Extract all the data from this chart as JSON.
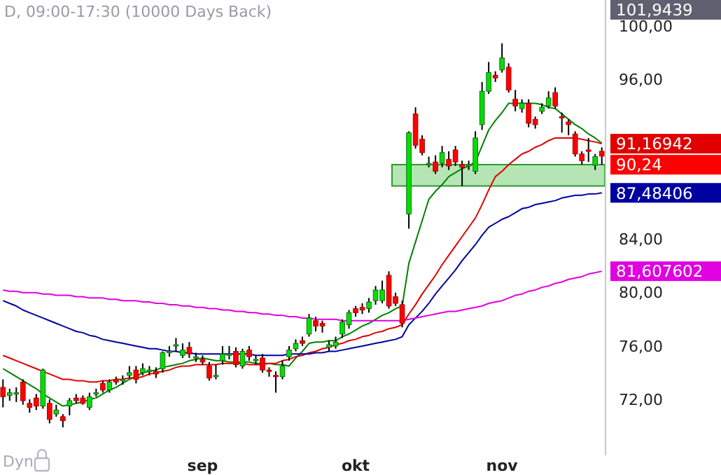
{
  "chart_data": {
    "type": "candlestick",
    "title": "D, 09:00-17:30 (10000 Days Back)",
    "categories": [
      null,
      null,
      null,
      null,
      null,
      null,
      null,
      null,
      null,
      null,
      null,
      null,
      null,
      null,
      null,
      null,
      null,
      null,
      null,
      null,
      null,
      null,
      null,
      null,
      null,
      null,
      null,
      null,
      null,
      null,
      "sep",
      null,
      null,
      null,
      null,
      null,
      null,
      null,
      null,
      null,
      null,
      null,
      null,
      null,
      null,
      null,
      null,
      null,
      null,
      null,
      null,
      null,
      null,
      "okt",
      null,
      null,
      null,
      null,
      null,
      null,
      null,
      null,
      null,
      null,
      null,
      null,
      null,
      null,
      null,
      null,
      null,
      null,
      null,
      null,
      null,
      "nov",
      null,
      null,
      null,
      null,
      null,
      null,
      null,
      null,
      null,
      null,
      null,
      null,
      null,
      null,
      null
    ],
    "ohlc": [
      [
        72.9,
        73.5,
        71.4,
        72.2
      ],
      [
        72.3,
        72.8,
        71.9,
        72.5
      ],
      [
        72.4,
        72.9,
        71.8,
        72.5
      ],
      [
        73.3,
        73.5,
        71.6,
        71.9
      ],
      [
        71.7,
        72.0,
        71.0,
        71.4
      ],
      [
        72.1,
        72.4,
        71.2,
        71.5
      ],
      [
        71.5,
        74.3,
        71.3,
        74.2
      ],
      [
        71.7,
        72.0,
        70.2,
        70.5
      ],
      [
        70.9,
        71.6,
        70.7,
        71.2
      ],
      [
        70.7,
        70.9,
        69.9,
        70.4
      ],
      [
        71.5,
        72.1,
        70.8,
        71.9
      ],
      [
        72.1,
        72.4,
        71.7,
        71.9
      ],
      [
        72.1,
        72.3,
        71.6,
        71.7
      ],
      [
        71.4,
        72.5,
        71.2,
        72.2
      ],
      [
        72.4,
        72.8,
        72.2,
        72.5
      ],
      [
        73.2,
        73.4,
        72.5,
        72.7
      ],
      [
        72.7,
        73.5,
        72.5,
        73.3
      ],
      [
        73.5,
        73.7,
        73.1,
        73.3
      ],
      [
        73.4,
        73.8,
        73.1,
        73.5
      ],
      [
        73.8,
        74.5,
        73.6,
        74.0
      ],
      [
        74.2,
        74.5,
        73.2,
        73.5
      ],
      [
        74.0,
        74.7,
        73.8,
        74.3
      ],
      [
        74.1,
        74.5,
        73.8,
        74.2
      ],
      [
        74.1,
        74.4,
        73.6,
        73.9
      ],
      [
        74.3,
        75.6,
        74.0,
        75.5
      ],
      [
        75.5,
        76.0,
        75.2,
        75.6
      ],
      [
        76.0,
        76.6,
        75.6,
        76.1
      ],
      [
        75.3,
        76.2,
        75.1,
        75.7
      ],
      [
        75.9,
        76.3,
        75.1,
        75.4
      ],
      [
        75.1,
        75.5,
        74.8,
        75.2
      ],
      [
        75.0,
        75.3,
        74.6,
        74.8
      ],
      [
        74.5,
        74.8,
        73.4,
        73.6
      ],
      [
        73.7,
        74.6,
        73.5,
        73.8
      ],
      [
        74.9,
        76.0,
        74.6,
        75.4
      ],
      [
        75.3,
        76.0,
        75.0,
        75.4
      ],
      [
        75.6,
        75.9,
        74.4,
        74.6
      ],
      [
        74.5,
        75.8,
        74.3,
        75.6
      ],
      [
        75.7,
        76.0,
        74.9,
        75.2
      ],
      [
        74.9,
        75.3,
        74.6,
        75.0
      ],
      [
        75.1,
        75.4,
        74.0,
        74.2
      ],
      [
        74.2,
        74.4,
        73.7,
        74.1
      ],
      [
        73.8,
        74.1,
        72.5,
        73.7
      ],
      [
        73.7,
        74.9,
        73.5,
        74.5
      ],
      [
        75.2,
        76.0,
        74.9,
        75.7
      ],
      [
        75.8,
        76.5,
        75.6,
        76.2
      ],
      [
        76.4,
        76.7,
        76.0,
        76.2
      ],
      [
        76.9,
        78.4,
        76.7,
        78.1
      ],
      [
        77.9,
        78.2,
        77.1,
        77.5
      ],
      [
        77.7,
        77.9,
        77.0,
        77.5
      ],
      [
        75.9,
        76.4,
        75.6,
        76.1
      ],
      [
        76.0,
        76.7,
        75.8,
        76.3
      ],
      [
        76.9,
        78.0,
        76.6,
        77.8
      ],
      [
        77.6,
        78.7,
        77.3,
        78.5
      ],
      [
        78.8,
        79.0,
        78.2,
        78.5
      ],
      [
        78.9,
        79.2,
        78.4,
        78.7
      ],
      [
        78.8,
        79.6,
        78.5,
        79.3
      ],
      [
        79.4,
        80.5,
        79.1,
        80.2
      ],
      [
        79.4,
        80.9,
        79.2,
        80.2
      ],
      [
        81.3,
        81.6,
        78.8,
        79.0
      ],
      [
        79.7,
        80.0,
        79.0,
        79.2
      ],
      [
        79.1,
        79.4,
        77.4,
        77.7
      ],
      [
        85.9,
        92.1,
        84.8,
        92.0
      ],
      [
        93.4,
        93.9,
        90.8,
        91.05
      ],
      [
        91.5,
        91.8,
        90.3,
        90.5
      ],
      [
        89.6,
        90.2,
        89.4,
        89.7
      ],
      [
        89.8,
        90.3,
        88.9,
        89.1
      ],
      [
        89.7,
        91.0,
        89.4,
        90.5
      ],
      [
        90.0,
        90.6,
        89.2,
        89.5
      ],
      [
        90.7,
        91.0,
        89.5,
        89.8
      ],
      [
        89.6,
        89.9,
        88.0,
        89.4
      ],
      [
        89.5,
        89.9,
        89.2,
        89.6
      ],
      [
        89.1,
        92.1,
        88.9,
        91.6
      ],
      [
        92.6,
        95.8,
        92.2,
        95.1
      ],
      [
        95.1,
        97.3,
        94.9,
        96.5
      ],
      [
        96.3,
        96.6,
        95.8,
        96.1
      ],
      [
        96.7,
        98.7,
        96.5,
        97.6
      ],
      [
        96.9,
        97.2,
        95.0,
        95.2
      ],
      [
        94.5,
        95.2,
        93.6,
        94.0
      ],
      [
        93.8,
        94.5,
        93.5,
        94.2
      ],
      [
        94.2,
        94.5,
        92.4,
        92.7
      ],
      [
        93.0,
        93.2,
        92.3,
        92.6
      ],
      [
        93.6,
        94.2,
        93.4,
        93.9
      ],
      [
        94.0,
        95.1,
        93.8,
        94.6
      ],
      [
        95.0,
        95.4,
        93.8,
        94.0
      ],
      [
        93.2,
        93.5,
        92.0,
        93.1
      ],
      [
        92.8,
        93.0,
        91.8,
        92.6
      ],
      [
        91.9,
        92.1,
        90.2,
        90.4
      ],
      [
        90.4,
        90.6,
        89.6,
        89.9
      ],
      [
        90.7,
        91.6,
        89.8,
        90.6
      ],
      [
        89.55,
        90.4,
        89.2,
        90.2
      ],
      [
        90.6,
        90.9,
        89.6,
        90.24
      ]
    ],
    "series": [
      {
        "type": "line",
        "color": "#008000",
        "values": [
          74.3,
          74.0,
          73.7,
          73.4,
          73.1,
          72.8,
          72.4,
          72.1,
          71.8,
          71.5,
          71.6,
          71.7,
          71.8,
          72.0,
          72.1,
          72.4,
          72.7,
          72.9,
          73.2,
          73.5,
          73.7,
          74.0,
          74.1,
          74.2,
          74.4,
          74.5,
          74.6,
          74.7,
          74.9,
          75.0,
          75.1,
          75.0,
          74.9,
          74.9,
          74.8,
          74.8,
          74.8,
          74.8,
          74.7,
          74.7,
          74.7,
          74.6,
          74.6,
          74.5,
          75.1,
          75.6,
          76.2,
          76.3,
          76.3,
          76.4,
          76.4,
          76.7,
          76.9,
          77.2,
          77.5,
          77.7,
          78.0,
          78.3,
          78.5,
          78.8,
          79.0,
          82.2,
          83.8,
          85.4,
          87.0,
          87.6,
          88.1,
          88.7,
          89.0,
          89.3,
          89.5,
          89.8,
          91.0,
          92.2,
          92.9,
          93.5,
          94.2,
          94.2,
          94.2,
          94.2,
          94.2,
          94.1,
          93.9,
          93.8,
          93.4,
          93.0,
          92.6,
          92.3,
          91.9,
          91.6,
          91.2
        ]
      },
      {
        "type": "line",
        "color": "#e00000",
        "values": [
          75.3,
          75.1,
          74.9,
          74.7,
          74.5,
          74.3,
          74.1,
          73.9,
          73.7,
          73.5,
          73.5,
          73.4,
          73.4,
          73.3,
          73.3,
          73.4,
          73.4,
          73.5,
          73.5,
          73.6,
          73.6,
          73.7,
          73.9,
          74.0,
          74.1,
          74.2,
          74.4,
          74.5,
          74.5,
          74.6,
          74.6,
          74.6,
          74.6,
          74.7,
          74.7,
          74.7,
          74.7,
          74.6,
          74.6,
          74.6,
          74.7,
          74.7,
          74.9,
          75.0,
          75.2,
          75.3,
          75.5,
          75.6,
          75.8,
          75.9,
          76.1,
          76.2,
          76.4,
          76.5,
          76.7,
          76.8,
          77.0,
          77.1,
          77.3,
          77.4,
          77.6,
          78.4,
          79.1,
          79.9,
          80.6,
          81.3,
          82.1,
          82.8,
          83.5,
          84.2,
          84.9,
          85.6,
          86.6,
          87.7,
          88.7,
          89.1,
          89.6,
          90.0,
          90.4,
          90.6,
          90.9,
          91.1,
          91.4,
          91.6,
          91.6,
          91.6,
          91.6,
          91.5,
          91.4,
          91.3,
          91.16942
        ],
        "value_labels": [
          null,
          null,
          null,
          null,
          null,
          null,
          null,
          null,
          null,
          null,
          null,
          null,
          null,
          null,
          null,
          null,
          null,
          null,
          null,
          null,
          null,
          null,
          null,
          null,
          null,
          null,
          null,
          null,
          null,
          null,
          null,
          null,
          null,
          null,
          null,
          null,
          null,
          null,
          null,
          null,
          null,
          null,
          null,
          null,
          null,
          null,
          null,
          null,
          null,
          null,
          null,
          null,
          null,
          null,
          null,
          null,
          null,
          null,
          null,
          null,
          null,
          null,
          null,
          null,
          null,
          null,
          null,
          null,
          null,
          null,
          null,
          null,
          null,
          null,
          null,
          null,
          null,
          null,
          null,
          null,
          null,
          null,
          null,
          null,
          null,
          null,
          null,
          null,
          null,
          null,
          "91,16942"
        ]
      },
      {
        "type": "line",
        "color": "#0000a0",
        "values": [
          79.4,
          79.2,
          79.0,
          78.7,
          78.5,
          78.3,
          78.1,
          77.9,
          77.7,
          77.5,
          77.3,
          77.1,
          77.0,
          76.8,
          76.7,
          76.5,
          76.4,
          76.3,
          76.2,
          76.1,
          76.0,
          75.9,
          75.8,
          75.8,
          75.7,
          75.6,
          75.6,
          75.5,
          75.5,
          75.4,
          75.4,
          75.4,
          75.4,
          75.4,
          75.4,
          75.4,
          75.4,
          75.4,
          75.3,
          75.3,
          75.3,
          75.3,
          75.3,
          75.4,
          75.4,
          75.4,
          75.4,
          75.5,
          75.5,
          75.6,
          75.6,
          75.7,
          75.8,
          75.9,
          76.0,
          76.1,
          76.2,
          76.3,
          76.4,
          76.5,
          76.7,
          77.6,
          78.1,
          78.6,
          79.2,
          79.9,
          80.5,
          81.1,
          81.7,
          82.4,
          83.0,
          83.6,
          84.3,
          84.9,
          85.2,
          85.5,
          85.7,
          86.0,
          86.3,
          86.4,
          86.6,
          86.7,
          86.8,
          86.9,
          87.1,
          87.2,
          87.3,
          87.3,
          87.4,
          87.4,
          87.48406
        ],
        "value_labels": [
          null,
          null,
          null,
          null,
          null,
          null,
          null,
          null,
          null,
          null,
          null,
          null,
          null,
          null,
          null,
          null,
          null,
          null,
          null,
          null,
          null,
          null,
          null,
          null,
          null,
          null,
          null,
          null,
          null,
          null,
          null,
          null,
          null,
          null,
          null,
          null,
          null,
          null,
          null,
          null,
          null,
          null,
          null,
          null,
          null,
          null,
          null,
          null,
          null,
          null,
          null,
          null,
          null,
          null,
          null,
          null,
          null,
          null,
          null,
          null,
          null,
          null,
          null,
          null,
          null,
          null,
          null,
          null,
          null,
          null,
          null,
          null,
          null,
          null,
          null,
          null,
          null,
          null,
          null,
          null,
          null,
          null,
          null,
          null,
          null,
          null,
          null,
          null,
          null,
          null,
          "87,48406"
        ]
      },
      {
        "type": "line",
        "color": "#e000e0",
        "values": [
          80.2,
          80.1,
          80.1,
          80.0,
          80.0,
          80.0,
          79.9,
          79.9,
          79.8,
          79.8,
          79.8,
          79.7,
          79.7,
          79.6,
          79.6,
          79.6,
          79.5,
          79.5,
          79.4,
          79.4,
          79.4,
          79.3,
          79.3,
          79.2,
          79.2,
          79.1,
          79.1,
          79.0,
          79.0,
          78.9,
          78.9,
          78.8,
          78.8,
          78.7,
          78.7,
          78.6,
          78.6,
          78.5,
          78.5,
          78.4,
          78.4,
          78.3,
          78.3,
          78.2,
          78.2,
          78.1,
          78.1,
          78.0,
          78.0,
          78.0,
          78.0,
          77.9,
          77.9,
          77.9,
          77.9,
          77.9,
          77.9,
          77.9,
          77.9,
          77.9,
          77.9,
          78.0,
          78.1,
          78.2,
          78.3,
          78.4,
          78.5,
          78.6,
          78.6,
          78.7,
          78.8,
          78.9,
          79.0,
          79.2,
          79.3,
          79.4,
          79.6,
          79.8,
          79.9,
          80.1,
          80.2,
          80.4,
          80.5,
          80.7,
          80.8,
          81.0,
          81.1,
          81.2,
          81.4,
          81.5,
          81.607602
        ],
        "value_labels": [
          null,
          null,
          null,
          null,
          null,
          null,
          null,
          null,
          null,
          null,
          null,
          null,
          null,
          null,
          null,
          null,
          null,
          null,
          null,
          null,
          null,
          null,
          null,
          null,
          null,
          null,
          null,
          null,
          null,
          null,
          null,
          null,
          null,
          null,
          null,
          null,
          null,
          null,
          null,
          null,
          null,
          null,
          null,
          null,
          null,
          null,
          null,
          null,
          null,
          null,
          null,
          null,
          null,
          null,
          null,
          null,
          null,
          null,
          null,
          null,
          null,
          null,
          null,
          null,
          null,
          null,
          null,
          null,
          null,
          null,
          null,
          null,
          null,
          null,
          null,
          null,
          null,
          null,
          null,
          null,
          null,
          null,
          null,
          null,
          null,
          null,
          null,
          null,
          null,
          null,
          "81,607602"
        ]
      }
    ],
    "bands": [
      {
        "axis": "y",
        "from": 88.0,
        "to": 89.6,
        "color": "#a8e0a8"
      }
    ],
    "annotations": [
      "101,9439",
      "Dyn"
    ],
    "value_labels": [
      null,
      null,
      null,
      null,
      null,
      null,
      null,
      null,
      null,
      null,
      null,
      null,
      null,
      null,
      null,
      null,
      null,
      null,
      null,
      null,
      null,
      null,
      null,
      null,
      null,
      null,
      null,
      null,
      null,
      null,
      null,
      null,
      null,
      null,
      null,
      null,
      null,
      null,
      null,
      null,
      null,
      null,
      null,
      null,
      null,
      null,
      null,
      null,
      null,
      null,
      null,
      null,
      null,
      null,
      null,
      null,
      null,
      null,
      null,
      null,
      null,
      null,
      null,
      null,
      null,
      null,
      null,
      null,
      null,
      null,
      null,
      null,
      null,
      null,
      null,
      null,
      null,
      null,
      null,
      null,
      null,
      null,
      null,
      null,
      null,
      null,
      null,
      null,
      null,
      null,
      "90,24"
    ],
    "ylim": [
      67.8,
      101.9439
    ],
    "yticks": [
      {
        "value": 72,
        "label": "72,00"
      },
      {
        "value": 76,
        "label": "76,00"
      },
      {
        "value": 80,
        "label": "80,00"
      },
      {
        "value": 84,
        "label": "84,00"
      },
      {
        "value": 96,
        "label": "96,00"
      },
      {
        "value": 100,
        "label": "100,00"
      }
    ],
    "grid": false
  }
}
